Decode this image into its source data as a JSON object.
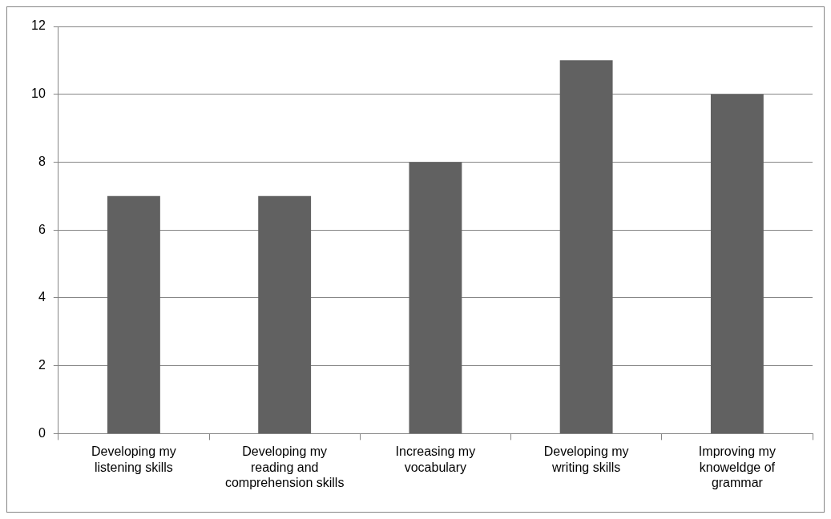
{
  "chart_data": {
    "type": "bar",
    "categories": [
      "Developing my listening skills",
      "Developing my reading and comprehension skills",
      "Increasing my vocabulary",
      "Developing my writing skills",
      "Improving my knoweldge of grammar"
    ],
    "values": [
      7,
      7,
      8,
      11,
      10
    ],
    "color": "#616161",
    "ylim": [
      0,
      12
    ],
    "yticks": [
      0,
      2,
      4,
      6,
      8,
      10,
      12
    ],
    "grid": "y",
    "legend": false
  }
}
